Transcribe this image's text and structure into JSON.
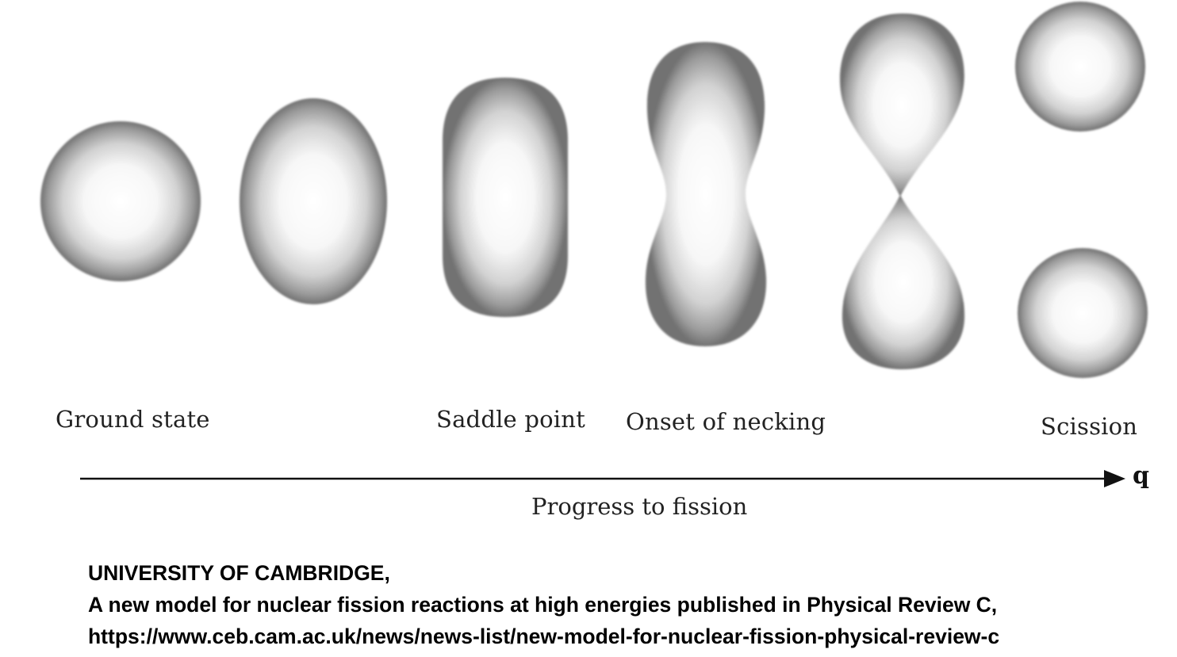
{
  "figure": {
    "stages": [
      {
        "label": "Ground state"
      },
      {
        "label": ""
      },
      {
        "label": "Saddle point"
      },
      {
        "label": "Onset of necking"
      },
      {
        "label": ""
      },
      {
        "label": "Scission"
      }
    ],
    "axis": {
      "variable": "q",
      "caption": "Progress to fission"
    },
    "colors": {
      "blob_center": "#ffffff",
      "blob_edge": "#6f6f6f",
      "arrow": "#111111"
    }
  },
  "credit": {
    "source": "UNIVERSITY OF CAMBRIDGE,",
    "title": "A new model for nuclear fission reactions at high energies published in Physical Review C,",
    "url": "https://www.ceb.cam.ac.uk/news/news-list/new-model-for-nuclear-fission-physical-review-c"
  }
}
